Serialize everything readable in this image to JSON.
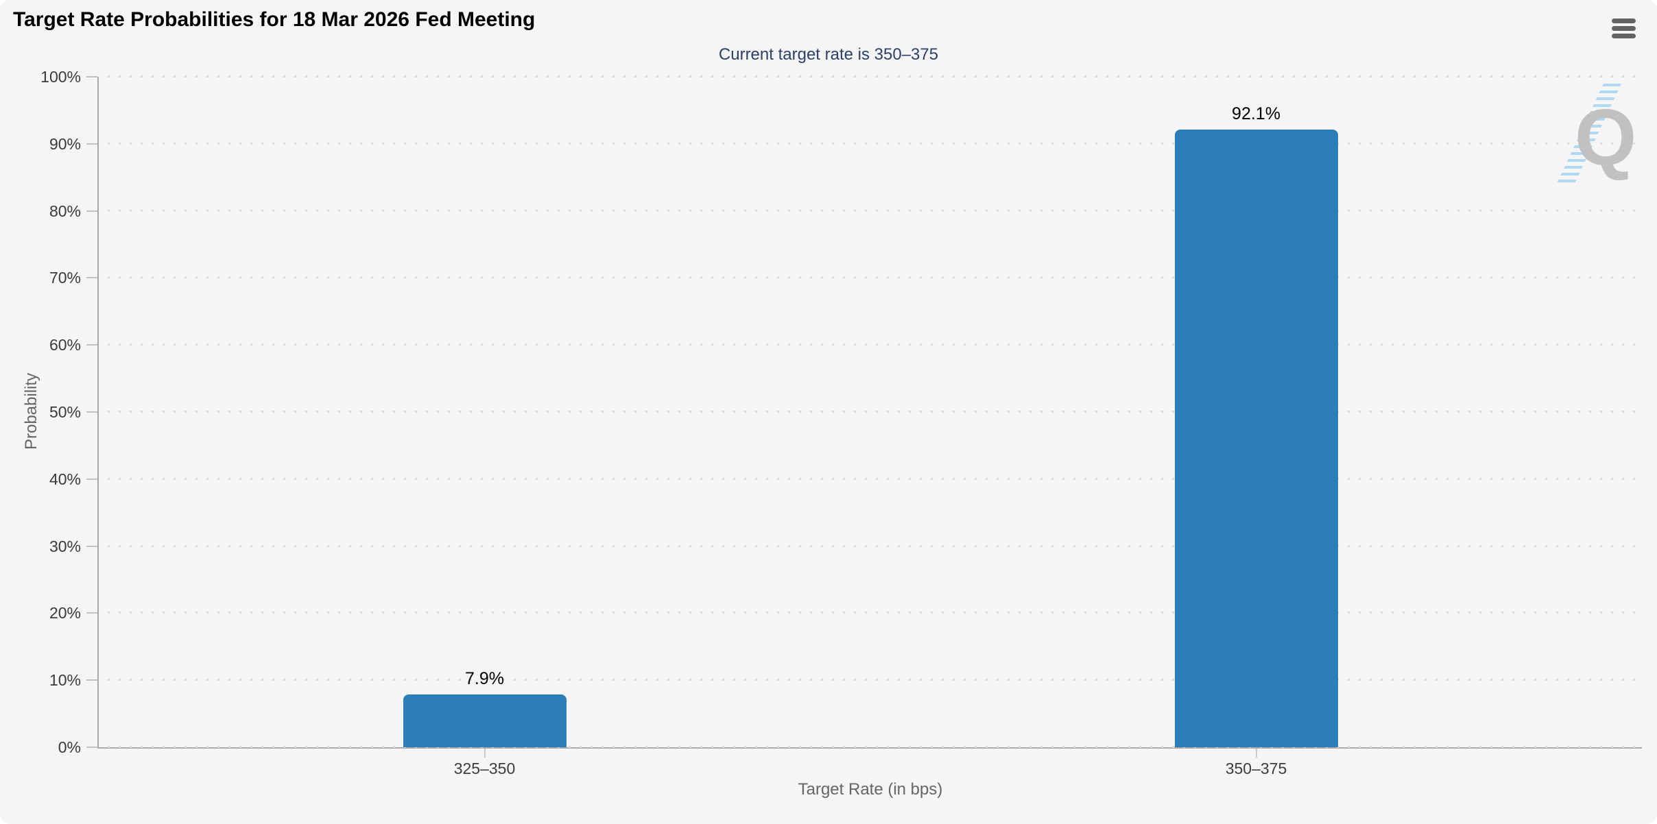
{
  "toolbar": {
    "menu_icon": "hamburger-menu-icon"
  },
  "watermark": {
    "letter": "Q",
    "q_color": "#c1c1c1",
    "stripe_color": "#9ed2ef"
  },
  "colors": {
    "card_background": "#f5f5f6",
    "bar": "#2c7db8",
    "subtitle_text": "#2b4168",
    "axis_line": "#a9a9a9",
    "grid_dot": "#dcdcdc"
  },
  "chart_data": {
    "type": "bar",
    "title": "Target Rate Probabilities for 18 Mar 2026 Fed Meeting",
    "subtitle": "Current target rate is 350–375",
    "categories": [
      "325–350",
      "350–375"
    ],
    "values": [
      7.9,
      92.1
    ],
    "data_labels": [
      "7.9%",
      "92.1%"
    ],
    "xlabel": "Target Rate (in bps)",
    "ylabel": "Probability",
    "ylim": [
      0,
      100
    ],
    "ytick_step": 10,
    "ytick_labels": [
      "0%",
      "10%",
      "20%",
      "30%",
      "40%",
      "50%",
      "60%",
      "70%",
      "80%",
      "90%",
      "100%"
    ],
    "grid": "dotted-horizontal",
    "legend": "none",
    "bar_color": "#2c7db8"
  }
}
